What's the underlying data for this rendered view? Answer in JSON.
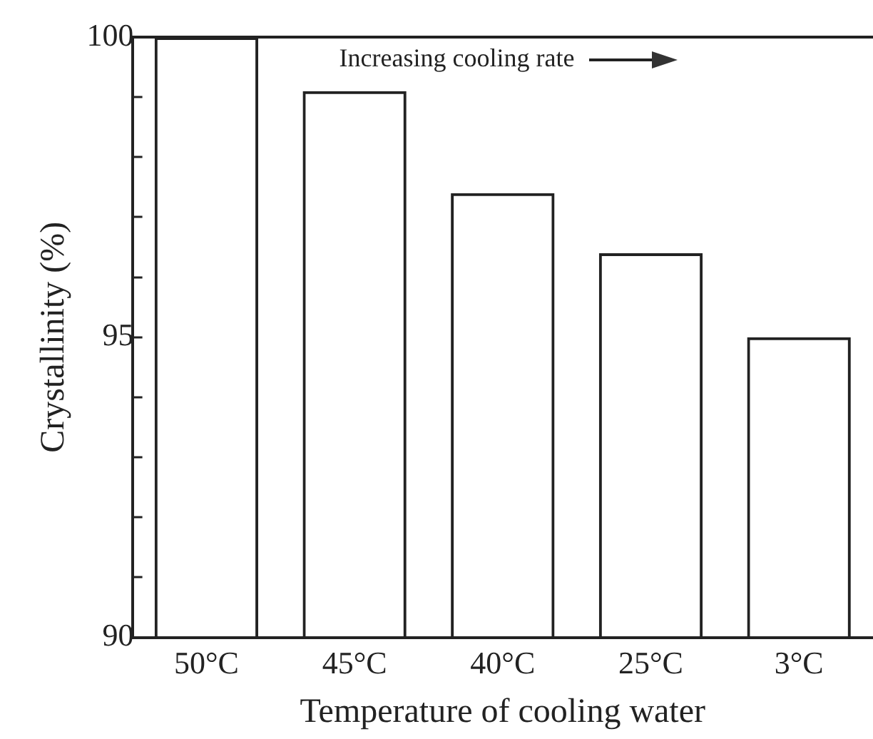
{
  "chart_data": {
    "type": "bar",
    "xlabel": "Temperature of cooling water",
    "ylabel": "Crystallinity (%)",
    "categories": [
      "50°C",
      "45°C",
      "40°C",
      "25°C",
      "3°C"
    ],
    "values": [
      100,
      99.1,
      97.4,
      96.4,
      95.0
    ],
    "color": "#222222",
    "ylim": [
      90,
      100
    ],
    "yticks": [
      90,
      {
        "value": 91,
        "label": null
      },
      {
        "value": 92,
        "label": null
      },
      {
        "value": 93,
        "label": null
      },
      {
        "value": 94,
        "label": null
      },
      95,
      {
        "value": 96,
        "label": null
      },
      {
        "value": 97,
        "label": null
      },
      {
        "value": 98,
        "label": null
      },
      {
        "value": 99,
        "label": null
      },
      100
    ],
    "grid": false,
    "legend": false,
    "annotations": [
      "Increasing cooling rate"
    ]
  }
}
